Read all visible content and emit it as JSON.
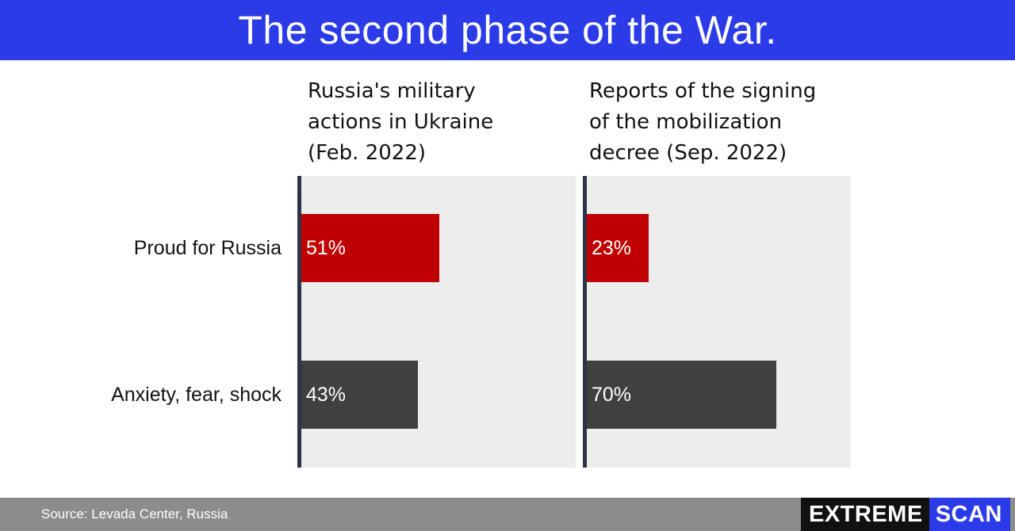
{
  "header": {
    "title": "The second phase of the War."
  },
  "chart_data": {
    "type": "bar",
    "orientation": "horizontal",
    "title": "The second phase of the War.",
    "categories": [
      "Proud for Russia",
      "Anxiety, fear, shock"
    ],
    "series": [
      {
        "name": "Russia's military actions in Ukraine (Feb. 2022)",
        "values": [
          51,
          43
        ],
        "value_labels": [
          "51%",
          "43%"
        ]
      },
      {
        "name": "Reports of the signing of the mobilization decree (Sep. 2022)",
        "values": [
          23,
          70
        ],
        "value_labels": [
          "23%",
          "70%"
        ]
      }
    ],
    "xlim": [
      0,
      100
    ],
    "unit": "%",
    "colors": {
      "Proud for Russia": "#c00000",
      "Anxiety, fear, shock": "#404040"
    },
    "grid": false,
    "legend": "none"
  },
  "panels": [
    {
      "title_lines": [
        "Russia's military",
        "actions in Ukraine",
        "(Feb. 2022)"
      ]
    },
    {
      "title_lines": [
        "Reports of the signing",
        "of the mobilization",
        "decree (Sep. 2022)"
      ]
    }
  ],
  "footer": {
    "source": "Source: Levada Center, Russia"
  },
  "logo": {
    "part1": "EXTREME",
    "part2": "SCAN"
  },
  "colors": {
    "title_bar": "#2b3be8",
    "panel_bg": "#ededed",
    "axis": "#2c3547",
    "footer_bg": "#8c8c8c"
  }
}
